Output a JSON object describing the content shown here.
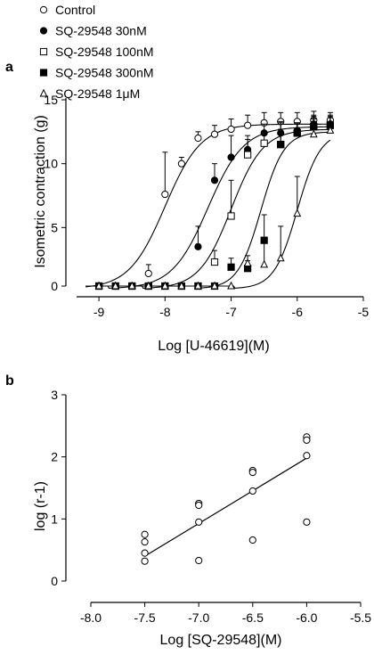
{
  "chart_data": [
    {
      "type": "scatter",
      "panel_label": "a",
      "xlabel": "Log [U-46619](M)",
      "ylabel": "Isometric contraction (g)",
      "xlim": [
        -9.5,
        -5
      ],
      "ylim": [
        0,
        15
      ],
      "xticks": [
        -9,
        -8,
        -7,
        -6,
        -5
      ],
      "xtick_labels": [
        "-9",
        "-8",
        "-7",
        "-6",
        "-5"
      ],
      "yticks": [
        0,
        5,
        10,
        15
      ],
      "ytick_labels": [
        "0",
        "5",
        "10",
        "15"
      ],
      "legend_placement": "top-left, above plot",
      "series": [
        {
          "name": "Control",
          "marker": "open-circle",
          "fit_ec50": -8.0,
          "fit_max": 13.1,
          "fit_min": 0.2,
          "hill": 1.6,
          "points": [
            {
              "x": -8.25,
              "y": 1.4,
              "err": 0.7
            },
            {
              "x": -8.0,
              "y": 7.6,
              "err": 3.3
            },
            {
              "x": -7.75,
              "y": 10.0,
              "err": 0.5
            },
            {
              "x": -7.5,
              "y": 12.0,
              "err": 0.5
            },
            {
              "x": -7.25,
              "y": 12.3,
              "err": 0.7
            },
            {
              "x": -7.0,
              "y": 12.7,
              "err": 0.8
            },
            {
              "x": -6.75,
              "y": 13.0,
              "err": 0.8
            },
            {
              "x": -6.5,
              "y": 13.2,
              "err": 0.8
            },
            {
              "x": -6.25,
              "y": 13.3,
              "err": 0.7
            },
            {
              "x": -6.0,
              "y": 13.3,
              "err": 0.7
            },
            {
              "x": -5.75,
              "y": 13.4,
              "err": 0.7
            },
            {
              "x": -5.5,
              "y": 13.4,
              "err": 0.6
            },
            {
              "x": -9.0,
              "y": 0.2,
              "err": 0
            },
            {
              "x": -8.75,
              "y": 0.2,
              "err": 0
            },
            {
              "x": -8.5,
              "y": 0.2,
              "err": 0
            }
          ]
        },
        {
          "name": "SQ-29548 30nM",
          "marker": "filled-circle",
          "fit_ec50": -7.35,
          "fit_max": 12.9,
          "fit_min": 0.2,
          "hill": 1.6,
          "points": [
            {
              "x": -9.0,
              "y": 0.2,
              "err": 0
            },
            {
              "x": -8.75,
              "y": 0.2,
              "err": 0
            },
            {
              "x": -8.5,
              "y": 0.2,
              "err": 0
            },
            {
              "x": -8.25,
              "y": 0.2,
              "err": 0
            },
            {
              "x": -8.0,
              "y": 0.2,
              "err": 0
            },
            {
              "x": -7.75,
              "y": 0.2,
              "err": 0
            },
            {
              "x": -7.5,
              "y": 3.5,
              "err": 1.6
            },
            {
              "x": -7.25,
              "y": 8.7,
              "err": 1.3
            },
            {
              "x": -7.0,
              "y": 10.5,
              "err": 1.7
            },
            {
              "x": -6.75,
              "y": 11.1,
              "err": 1.1
            },
            {
              "x": -6.5,
              "y": 12.4,
              "err": 0.7
            },
            {
              "x": -6.25,
              "y": 12.4,
              "err": 0.8
            },
            {
              "x": -6.0,
              "y": 12.6,
              "err": 0.6
            },
            {
              "x": -5.75,
              "y": 13.1,
              "err": 0.6
            },
            {
              "x": -5.5,
              "y": 13.1,
              "err": 0.5
            }
          ]
        },
        {
          "name": "SQ-29548 100nM",
          "marker": "open-square",
          "fit_ec50": -7.0,
          "fit_max": 12.7,
          "fit_min": 0.2,
          "hill": 1.8,
          "points": [
            {
              "x": -9.0,
              "y": 0.2,
              "err": 0
            },
            {
              "x": -8.75,
              "y": 0.2,
              "err": 0
            },
            {
              "x": -8.5,
              "y": 0.2,
              "err": 0
            },
            {
              "x": -8.25,
              "y": 0.2,
              "err": 0
            },
            {
              "x": -8.0,
              "y": 0.2,
              "err": 0
            },
            {
              "x": -7.75,
              "y": 0.2,
              "err": 0
            },
            {
              "x": -7.5,
              "y": 0.2,
              "err": 0
            },
            {
              "x": -7.25,
              "y": 2.3,
              "err": 0.9
            },
            {
              "x": -7.0,
              "y": 5.9,
              "err": 2.8
            },
            {
              "x": -6.75,
              "y": 10.7,
              "err": 1.2
            },
            {
              "x": -6.5,
              "y": 11.6,
              "err": 0.9
            },
            {
              "x": -6.25,
              "y": 11.5,
              "err": 1.8
            },
            {
              "x": -6.0,
              "y": 12.4,
              "err": 0.7
            },
            {
              "x": -5.75,
              "y": 12.9,
              "err": 0.7
            },
            {
              "x": -5.5,
              "y": 13.0,
              "err": 0.7
            }
          ]
        },
        {
          "name": "SQ-29548 300nM",
          "marker": "filled-square",
          "fit_ec50": -6.55,
          "fit_max": 12.5,
          "fit_min": 0.2,
          "hill": 2.5,
          "points": [
            {
              "x": -9.0,
              "y": 0.2,
              "err": 0
            },
            {
              "x": -8.75,
              "y": 0.2,
              "err": 0
            },
            {
              "x": -8.5,
              "y": 0.2,
              "err": 0
            },
            {
              "x": -8.25,
              "y": 0.2,
              "err": 0
            },
            {
              "x": -8.0,
              "y": 0.2,
              "err": 0
            },
            {
              "x": -7.75,
              "y": 0.2,
              "err": 0
            },
            {
              "x": -7.5,
              "y": 0.2,
              "err": 0
            },
            {
              "x": -7.25,
              "y": 0.2,
              "err": 0
            },
            {
              "x": -7.0,
              "y": 1.9,
              "err": 0.7
            },
            {
              "x": -6.75,
              "y": 1.8,
              "err": 0.6
            },
            {
              "x": -6.5,
              "y": 4.0,
              "err": 2.0
            },
            {
              "x": -6.25,
              "y": 11.5,
              "err": 1.2
            },
            {
              "x": -6.0,
              "y": 12.4,
              "err": 0.8
            },
            {
              "x": -5.75,
              "y": 12.9,
              "err": 0.9
            },
            {
              "x": -5.5,
              "y": 13.0,
              "err": 0.8
            }
          ]
        },
        {
          "name": "SQ-29548 1μM",
          "marker": "open-triangle",
          "fit_ec50": -6.0,
          "fit_max": 12.5,
          "fit_min": 0.2,
          "hill": 2.5,
          "points": [
            {
              "x": -9.0,
              "y": 0.2,
              "err": 0
            },
            {
              "x": -8.75,
              "y": 0.2,
              "err": 0
            },
            {
              "x": -8.5,
              "y": 0.2,
              "err": 0
            },
            {
              "x": -8.25,
              "y": 0.2,
              "err": 0
            },
            {
              "x": -8.0,
              "y": 0.2,
              "err": 0
            },
            {
              "x": -7.75,
              "y": 0.2,
              "err": 0
            },
            {
              "x": -7.5,
              "y": 0.2,
              "err": 0
            },
            {
              "x": -7.25,
              "y": 0.2,
              "err": 0
            },
            {
              "x": -7.0,
              "y": 0.2,
              "err": 0
            },
            {
              "x": -6.75,
              "y": 2.2,
              "err": 0.6
            },
            {
              "x": -6.5,
              "y": 2.1,
              "err": 2.0
            },
            {
              "x": -6.25,
              "y": 2.6,
              "err": 2.5
            },
            {
              "x": -6.0,
              "y": 6.1,
              "err": 2.9
            },
            {
              "x": -5.75,
              "y": 12.3,
              "err": 1.2
            },
            {
              "x": -5.5,
              "y": 12.6,
              "err": 1.0
            }
          ]
        }
      ]
    },
    {
      "type": "scatter",
      "panel_label": "b",
      "xlabel": "Log [SQ-29548](M)",
      "ylabel": "log (r-1)",
      "xlim": [
        -8.0,
        -5.5
      ],
      "ylim": [
        0,
        3
      ],
      "xticks": [
        -8.0,
        -7.5,
        -7.0,
        -6.5,
        -6.0,
        -5.5
      ],
      "xtick_labels": [
        "-8.0",
        "-7.5",
        "-7.0",
        "-6.5",
        "-6.0",
        "-5.5"
      ],
      "yticks": [
        0,
        1,
        2,
        3
      ],
      "ytick_labels": [
        "0",
        "1",
        "2",
        "3"
      ],
      "series": [
        {
          "marker": "open-circle",
          "points": [
            {
              "x": -7.5,
              "y": 0.75
            },
            {
              "x": -7.5,
              "y": 0.63
            },
            {
              "x": -7.5,
              "y": 0.45
            },
            {
              "x": -7.5,
              "y": 0.32
            },
            {
              "x": -7.0,
              "y": 1.25
            },
            {
              "x": -7.0,
              "y": 1.22
            },
            {
              "x": -7.0,
              "y": 0.95
            },
            {
              "x": -7.0,
              "y": 0.33
            },
            {
              "x": -6.5,
              "y": 1.78
            },
            {
              "x": -6.5,
              "y": 1.75
            },
            {
              "x": -6.5,
              "y": 1.45
            },
            {
              "x": -6.5,
              "y": 0.66
            },
            {
              "x": -6.0,
              "y": 2.32
            },
            {
              "x": -6.0,
              "y": 2.27
            },
            {
              "x": -6.0,
              "y": 2.02
            },
            {
              "x": -6.0,
              "y": 0.95
            }
          ]
        }
      ],
      "regression_line": {
        "x": [
          -7.5,
          -6.0
        ],
        "y": [
          0.4,
          1.98
        ]
      }
    }
  ]
}
